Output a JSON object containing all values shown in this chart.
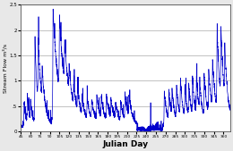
{
  "xlabel": "Julian Day",
  "ylabel": "Stream Flow m³/s",
  "xlim": [
    45,
    370
  ],
  "ylim": [
    0,
    2.5
  ],
  "yticks": [
    0,
    0.5,
    1.0,
    1.5,
    2.0,
    2.5
  ],
  "ytick_labels": [
    "0",
    ".5",
    "1",
    "1.5",
    "2",
    "2.5"
  ],
  "line_color": "#0000cc",
  "line_width": 0.5,
  "background_color": "#e8e8e8",
  "axes_bg": "#ffffff",
  "grid_color": "#aaaaaa",
  "grid_lw": 0.5
}
